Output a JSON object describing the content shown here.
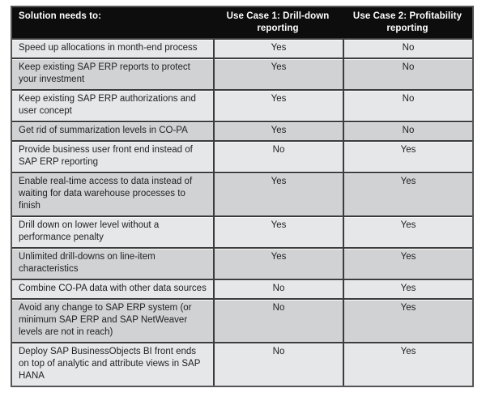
{
  "colors": {
    "page-bg": "#ffffff",
    "header-bg": "#0d0d0d",
    "header-text": "#ffffff",
    "row-light": "#e6e7e8",
    "row-dark": "#d1d2d3",
    "border": "#3c3c3e",
    "outer": "#565658",
    "text": "#222224",
    "hairline": "#fafafa"
  },
  "table": {
    "columns": [
      {
        "id": "need",
        "label": "Solution needs to:"
      },
      {
        "id": "uc1",
        "label": "Use Case 1: Drill-down reporting"
      },
      {
        "id": "uc2",
        "label": "Use Case 2: Profitability reporting"
      }
    ],
    "rows": [
      {
        "need": "Speed up allocations in month-end process",
        "uc1": "Yes",
        "uc2": "No"
      },
      {
        "need": "Keep existing SAP ERP reports to protect your investment",
        "uc1": "Yes",
        "uc2": "No"
      },
      {
        "need": "Keep existing SAP ERP authorizations and user concept",
        "uc1": "Yes",
        "uc2": "No"
      },
      {
        "need": "Get rid of summarization levels in CO-PA",
        "uc1": "Yes",
        "uc2": "No"
      },
      {
        "need": "Provide business user front end instead of SAP ERP reporting",
        "uc1": "No",
        "uc2": "Yes"
      },
      {
        "need": "Enable real-time access to data instead of waiting for data warehouse processes to finish",
        "uc1": "Yes",
        "uc2": "Yes"
      },
      {
        "need": "Drill down on lower level without a performance penalty",
        "uc1": "Yes",
        "uc2": "Yes"
      },
      {
        "need": "Unlimited drill-downs on line-item characteristics",
        "uc1": "Yes",
        "uc2": "Yes"
      },
      {
        "need": "Combine CO-PA data with other data sources",
        "uc1": "No",
        "uc2": "Yes"
      },
      {
        "need": "Avoid any change to SAP ERP system (or minimum SAP ERP and SAP NetWeaver levels are not in reach)",
        "uc1": "No",
        "uc2": "Yes"
      },
      {
        "need": "Deploy SAP BusinessObjects BI front ends on top of analytic and attribute views in SAP HANA",
        "uc1": "No",
        "uc2": "Yes"
      }
    ]
  }
}
